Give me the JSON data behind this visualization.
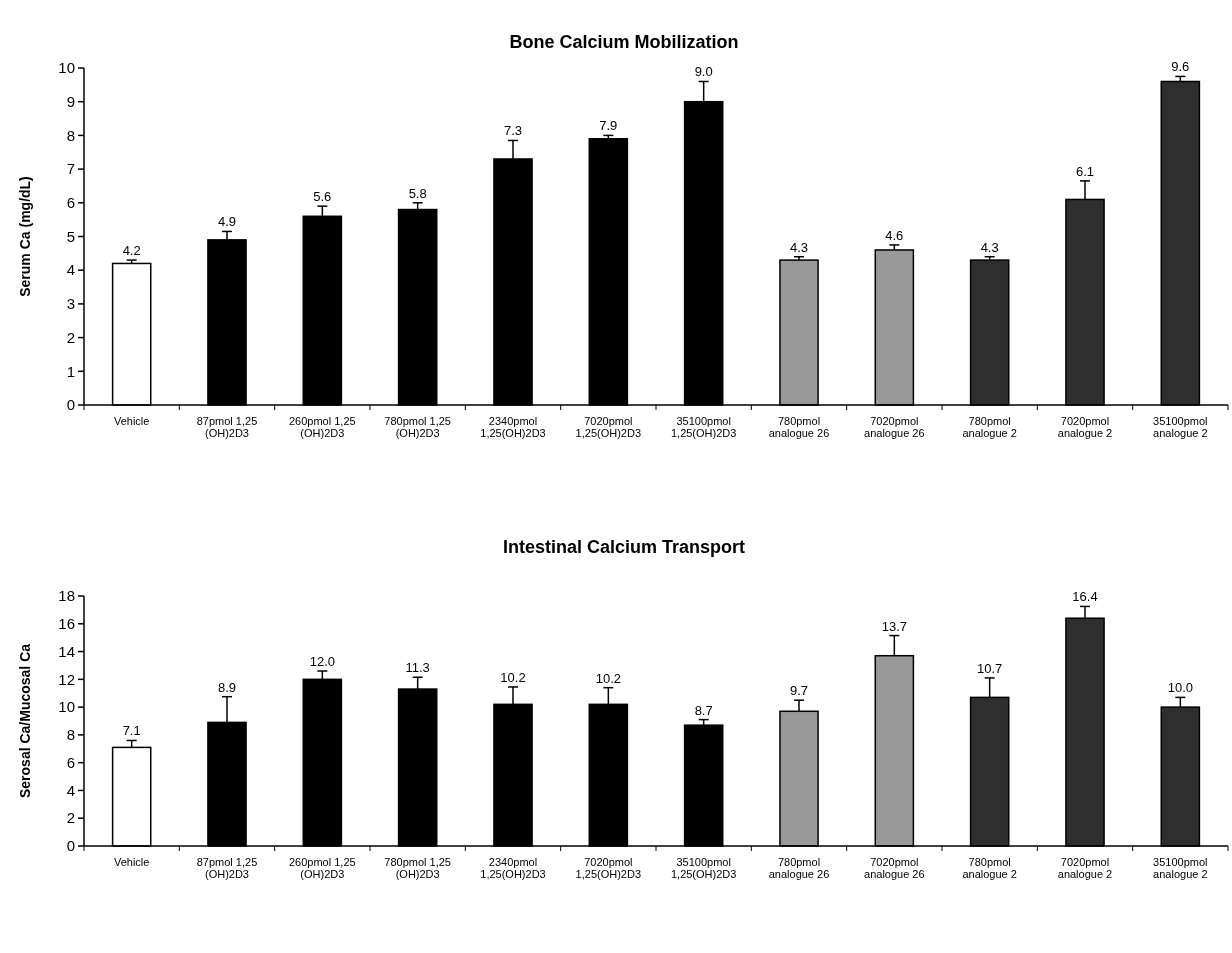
{
  "chart_data": [
    {
      "type": "bar",
      "title": "Bone Calcium Mobilization",
      "ylabel": "Serum Ca (mg/dL)",
      "categories": [
        "Vehicle",
        "87pmol 1,25\n(OH)2D3",
        "260pmol 1,25\n(OH)2D3",
        "780pmol 1,25\n(OH)2D3",
        "2340pmol\n1,25(OH)2D3",
        "7020pmol\n1,25(OH)2D3",
        "35100pmol\n1,25(OH)2D3",
        "780pmol\nanalogue 26",
        "7020pmol\nanalogue 26",
        "780pmol\nanalogue 2",
        "7020pmol\nanalogue 2",
        "35100pmol\nanalogue 2"
      ],
      "values": [
        4.2,
        4.9,
        5.6,
        5.8,
        7.3,
        7.9,
        9.0,
        4.3,
        4.6,
        4.3,
        6.1,
        9.6
      ],
      "value_labels": [
        "4.2",
        "4.9",
        "5.6",
        "5.8",
        "7.3",
        "7.9",
        "9.0",
        "4.3",
        "4.6",
        "4.3",
        "6.1",
        "9.6"
      ],
      "errors": [
        [
          4.2,
          4.3
        ],
        [
          4.9,
          5.15
        ],
        [
          5.6,
          5.9
        ],
        [
          5.8,
          6.0
        ],
        [
          7.3,
          7.85
        ],
        [
          7.9,
          8.0
        ],
        [
          9.0,
          9.6
        ],
        [
          4.3,
          4.4
        ],
        [
          4.6,
          4.75
        ],
        [
          4.3,
          4.4
        ],
        [
          6.1,
          6.65
        ],
        [
          9.6,
          9.75
        ]
      ],
      "colors": [
        "#ffffff",
        "#000000",
        "#000000",
        "#000000",
        "#000000",
        "#000000",
        "#000000",
        "#999999",
        "#999999",
        "#2e2e2e",
        "#2e2e2e",
        "#2e2e2e"
      ],
      "ylim": [
        0,
        10
      ],
      "yticks": [
        0,
        1,
        2,
        3,
        4,
        5,
        6,
        7,
        8,
        9,
        10
      ],
      "grid": false
    },
    {
      "type": "bar",
      "title": "Intestinal Calcium Transport",
      "ylabel": "Serosal Ca/Mucosal Ca",
      "categories": [
        "Vehicle",
        "87pmol 1,25\n(OH)2D3",
        "260pmol 1,25\n(OH)2D3",
        "780pmol 1,25\n(OH)2D3",
        "2340pmol\n1,25(OH)2D3",
        "7020pmol\n1,25(OH)2D3",
        "35100pmol\n1,25(OH)2D3",
        "780pmol\nanalogue 26",
        "7020pmol\nanalogue 26",
        "780pmol\nanalogue 2",
        "7020pmol\nanalogue 2",
        "35100pmol\nanalogue 2"
      ],
      "values": [
        7.1,
        8.9,
        12.0,
        11.3,
        10.2,
        10.2,
        8.7,
        9.7,
        13.7,
        10.7,
        16.4,
        10.0
      ],
      "value_labels": [
        "7.1",
        "8.9",
        "12.0",
        "11.3",
        "10.2",
        "10.2",
        "8.7",
        "9.7",
        "13.7",
        "10.7",
        "16.4",
        "10.0"
      ],
      "errors": [
        [
          7.1,
          7.6
        ],
        [
          8.9,
          10.75
        ],
        [
          12.0,
          12.6
        ],
        [
          11.3,
          12.15
        ],
        [
          10.2,
          11.45
        ],
        [
          10.2,
          11.4
        ],
        [
          8.7,
          9.1
        ],
        [
          9.7,
          10.5
        ],
        [
          13.7,
          15.15
        ],
        [
          10.7,
          12.1
        ],
        [
          16.4,
          17.25
        ],
        [
          10.0,
          10.7
        ]
      ],
      "colors": [
        "#ffffff",
        "#000000",
        "#000000",
        "#000000",
        "#000000",
        "#000000",
        "#000000",
        "#999999",
        "#999999",
        "#2e2e2e",
        "#2e2e2e",
        "#2e2e2e"
      ],
      "ylim": [
        0,
        18
      ],
      "yticks": [
        0,
        2,
        4,
        6,
        8,
        10,
        12,
        14,
        16,
        18
      ],
      "grid": false
    }
  ]
}
